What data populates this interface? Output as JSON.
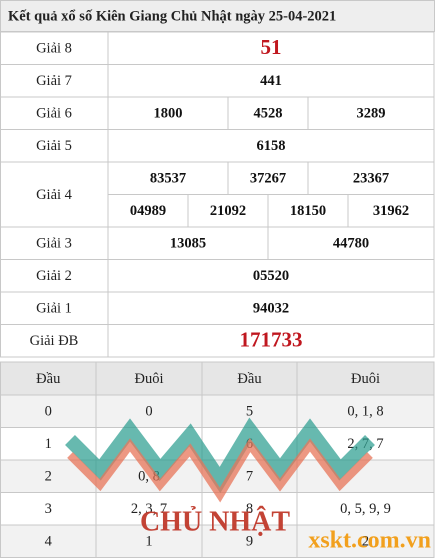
{
  "title": "Kết quả xổ số Kiên Giang Chủ Nhật ngày 25-04-2021",
  "prizes": [
    {
      "label": "Giải 8",
      "numbers": [
        "51"
      ]
    },
    {
      "label": "Giải 7",
      "numbers": [
        "441"
      ]
    },
    {
      "label": "Giải 6",
      "numbers": [
        "1800",
        "4528",
        "3289"
      ]
    },
    {
      "label": "Giải 5",
      "numbers": [
        "6158"
      ]
    },
    {
      "label": "Giải 4",
      "numbers": [
        "83537",
        "37267",
        "23367",
        "04989",
        "21092",
        "18150",
        "31962"
      ]
    },
    {
      "label": "Giải 3",
      "numbers": [
        "13085",
        "44780"
      ]
    },
    {
      "label": "Giải 2",
      "numbers": [
        "05520"
      ]
    },
    {
      "label": "Giải 1",
      "numbers": [
        "94032"
      ]
    },
    {
      "label": "Giải ĐB",
      "numbers": [
        "171733"
      ]
    }
  ],
  "loto": {
    "headers": [
      "Đầu",
      "Đuôi",
      "Đầu",
      "Đuôi"
    ],
    "rows": [
      [
        "0",
        "0",
        "5",
        "0, 1, 8"
      ],
      [
        "1",
        null,
        "6",
        "2, 7, 7"
      ],
      [
        "2",
        "0, 8",
        "7",
        null
      ],
      [
        "3",
        "2, 3, 7",
        "8",
        "0, 5, 9, 9"
      ],
      [
        "4",
        "1",
        "9",
        "2"
      ]
    ]
  },
  "watermark": {
    "day": "CHỦ NHẬT",
    "site": "xskt.com.vn"
  }
}
